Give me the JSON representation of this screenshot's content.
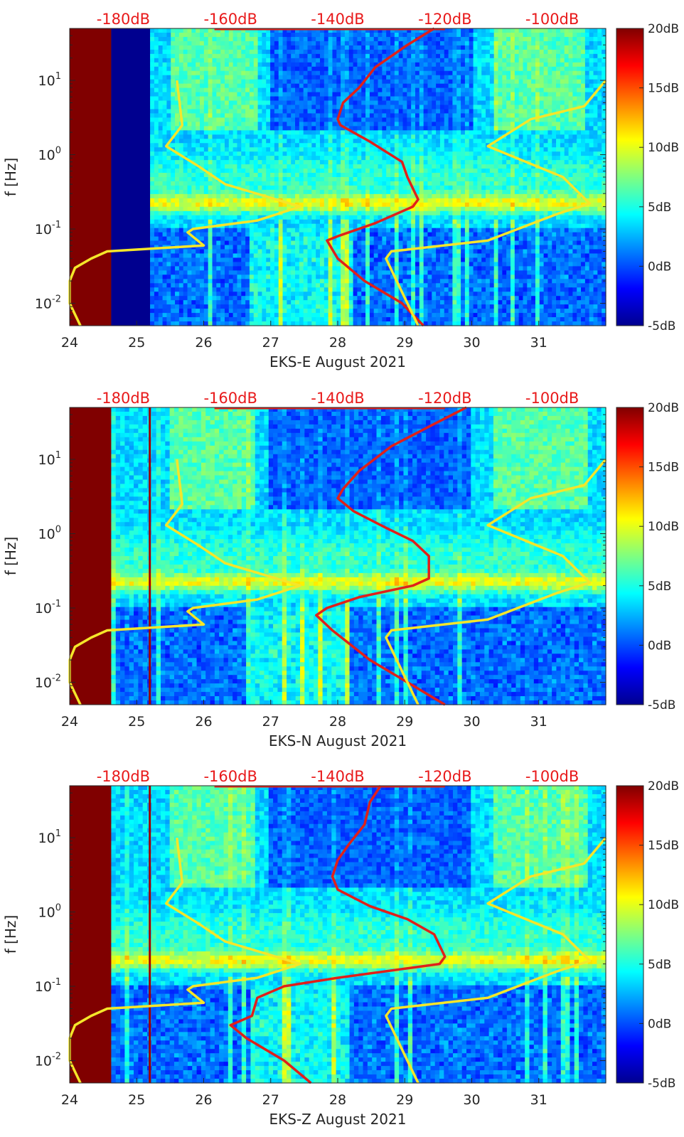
{
  "figure": {
    "colorbar": {
      "ticks": [
        "20dB",
        "15dB",
        "10dB",
        "5dB",
        "0dB",
        "-5dB"
      ],
      "range_db": [
        -5,
        20
      ],
      "colormap": "jet"
    },
    "top_axis_ticks": [
      "-180dB",
      "-160dB",
      "-140dB",
      "-120dB",
      "-100dB"
    ],
    "top_axis_color": "#e8191a",
    "curve_colors": {
      "red": "#e0201a",
      "yellow": "#f5e62a"
    },
    "panels": [
      {
        "xlabel": "EKS-E August 2021",
        "ylabel": "f [Hz]"
      },
      {
        "xlabel": "EKS-N August 2021",
        "ylabel": "f [Hz]"
      },
      {
        "xlabel": "EKS-Z August 2021",
        "ylabel": "f [Hz]"
      }
    ]
  },
  "chart_data": [
    {
      "type": "heatmap",
      "xlabel": "EKS-E August 2021",
      "ylabel": "f [Hz]",
      "xlim": [
        24,
        32
      ],
      "x_ticks": [
        "24",
        "25",
        "26",
        "27",
        "28",
        "29",
        "30",
        "31"
      ],
      "y_scale": "log",
      "ylim": [
        0.005,
        50
      ],
      "y_ticks": [
        "10^-2",
        "10^-1",
        "10^0",
        "10^1"
      ],
      "top_axis": {
        "label_ticks": [
          "-180dB",
          "-160dB",
          "-140dB",
          "-120dB",
          "-100dB"
        ],
        "db_range": [
          -190,
          -90
        ]
      },
      "colorbar_ticks": [
        "20dB",
        "15dB",
        "10dB",
        "5dB",
        "0dB",
        "-5dB"
      ],
      "overlay_curves": [
        {
          "color": "red",
          "points_db_hz": [
            [
              -122,
              50
            ],
            [
              -127,
              30
            ],
            [
              -133,
              15
            ],
            [
              -136,
              8
            ],
            [
              -139,
              5
            ],
            [
              -140,
              3
            ],
            [
              -139.5,
              2.5
            ],
            [
              -134,
              1.5
            ],
            [
              -128,
              0.8
            ],
            [
              -127,
              0.5
            ],
            [
              -125,
              0.25
            ],
            [
              -126,
              0.2
            ],
            [
              -133,
              0.12
            ],
            [
              -140,
              0.08
            ],
            [
              -142,
              0.07
            ],
            [
              -140,
              0.04
            ],
            [
              -135,
              0.02
            ],
            [
              -128,
              0.01
            ],
            [
              -124,
              0.005
            ]
          ]
        },
        {
          "color": "yellow",
          "points_db_hz": [
            [
              -170,
              10
            ],
            [
              -169,
              2.5
            ],
            [
              -172,
              1.3
            ],
            [
              -166,
              0.7
            ],
            [
              -161,
              0.4
            ],
            [
              -147,
              0.2
            ],
            [
              -155,
              0.13
            ],
            [
              -167,
              0.1
            ],
            [
              -168,
              0.09
            ],
            [
              -165,
              0.06
            ],
            [
              -183,
              0.05
            ],
            [
              -186,
              0.04
            ],
            [
              -189,
              0.03
            ],
            [
              -190,
              0.02
            ],
            [
              -190,
              0.01
            ],
            [
              -188,
              0.005
            ]
          ]
        },
        {
          "color": "yellow",
          "points_db_hz": [
            [
              -90,
              10
            ],
            [
              -94,
              4.5
            ],
            [
              -104,
              3
            ],
            [
              -112,
              1.3
            ],
            [
              -98,
              0.5
            ],
            [
              -93,
              0.22
            ],
            [
              -99,
              0.16
            ],
            [
              -112,
              0.07
            ],
            [
              -130,
              0.05
            ],
            [
              -131,
              0.04
            ],
            [
              -129,
              0.02
            ],
            [
              -125,
              0.005
            ]
          ]
        }
      ]
    },
    {
      "type": "heatmap",
      "xlabel": "EKS-N August 2021",
      "ylabel": "f [Hz]",
      "xlim": [
        24,
        32
      ],
      "x_ticks": [
        "24",
        "25",
        "26",
        "27",
        "28",
        "29",
        "30",
        "31"
      ],
      "y_scale": "log",
      "ylim": [
        0.005,
        50
      ],
      "y_ticks": [
        "10^-2",
        "10^-1",
        "10^0",
        "10^1"
      ],
      "top_axis": {
        "label_ticks": [
          "-180dB",
          "-160dB",
          "-140dB",
          "-120dB",
          "-100dB"
        ],
        "db_range": [
          -190,
          -90
        ]
      },
      "colorbar_ticks": [
        "20dB",
        "15dB",
        "10dB",
        "5dB",
        "0dB",
        "-5dB"
      ],
      "overlay_curves": [
        {
          "color": "red",
          "points_db_hz": [
            [
              -116,
              50
            ],
            [
              -122,
              30
            ],
            [
              -130,
              15
            ],
            [
              -136,
              7
            ],
            [
              -139,
              4
            ],
            [
              -140,
              3
            ],
            [
              -137,
              2
            ],
            [
              -131,
              1.2
            ],
            [
              -126,
              0.8
            ],
            [
              -123,
              0.5
            ],
            [
              -123,
              0.25
            ],
            [
              -126,
              0.2
            ],
            [
              -136,
              0.14
            ],
            [
              -142,
              0.1
            ],
            [
              -144,
              0.08
            ],
            [
              -141,
              0.05
            ],
            [
              -134,
              0.02
            ],
            [
              -127,
              0.01
            ],
            [
              -120,
              0.005
            ]
          ]
        },
        {
          "color": "yellow",
          "points_db_hz": [
            [
              -170,
              10
            ],
            [
              -169,
              2.5
            ],
            [
              -172,
              1.3
            ],
            [
              -166,
              0.7
            ],
            [
              -161,
              0.4
            ],
            [
              -147,
              0.2
            ],
            [
              -155,
              0.13
            ],
            [
              -167,
              0.1
            ],
            [
              -168,
              0.09
            ],
            [
              -165,
              0.06
            ],
            [
              -183,
              0.05
            ],
            [
              -186,
              0.04
            ],
            [
              -189,
              0.03
            ],
            [
              -190,
              0.02
            ],
            [
              -190,
              0.01
            ],
            [
              -188,
              0.005
            ]
          ]
        },
        {
          "color": "yellow",
          "points_db_hz": [
            [
              -90,
              10
            ],
            [
              -94,
              4.5
            ],
            [
              -104,
              3
            ],
            [
              -112,
              1.3
            ],
            [
              -98,
              0.5
            ],
            [
              -93,
              0.22
            ],
            [
              -99,
              0.16
            ],
            [
              -112,
              0.07
            ],
            [
              -130,
              0.05
            ],
            [
              -131,
              0.04
            ],
            [
              -129,
              0.02
            ],
            [
              -125,
              0.005
            ]
          ]
        }
      ]
    },
    {
      "type": "heatmap",
      "xlabel": "EKS-Z August 2021",
      "ylabel": "f [Hz]",
      "xlim": [
        24,
        32
      ],
      "x_ticks": [
        "24",
        "25",
        "26",
        "27",
        "28",
        "29",
        "30",
        "31"
      ],
      "y_scale": "log",
      "ylim": [
        0.005,
        50
      ],
      "y_ticks": [
        "10^-2",
        "10^-1",
        "10^0",
        "10^1"
      ],
      "top_axis": {
        "label_ticks": [
          "-180dB",
          "-160dB",
          "-140dB",
          "-120dB",
          "-100dB"
        ],
        "db_range": [
          -190,
          -90
        ]
      },
      "colorbar_ticks": [
        "20dB",
        "15dB",
        "10dB",
        "5dB",
        "0dB",
        "-5dB"
      ],
      "overlay_curves": [
        {
          "color": "red",
          "points_db_hz": [
            [
              -132,
              50
            ],
            [
              -134,
              30
            ],
            [
              -135,
              15
            ],
            [
              -138,
              8
            ],
            [
              -140,
              5
            ],
            [
              -141,
              3
            ],
            [
              -140,
              2
            ],
            [
              -134,
              1.2
            ],
            [
              -127,
              0.8
            ],
            [
              -122,
              0.5
            ],
            [
              -120,
              0.25
            ],
            [
              -121,
              0.2
            ],
            [
              -140,
              0.13
            ],
            [
              -150,
              0.1
            ],
            [
              -155,
              0.07
            ],
            [
              -156,
              0.04
            ],
            [
              -160,
              0.03
            ],
            [
              -157,
              0.02
            ],
            [
              -150,
              0.01
            ],
            [
              -145,
              0.005
            ]
          ]
        },
        {
          "color": "yellow",
          "points_db_hz": [
            [
              -170,
              10
            ],
            [
              -169,
              2.5
            ],
            [
              -172,
              1.3
            ],
            [
              -166,
              0.7
            ],
            [
              -161,
              0.4
            ],
            [
              -147,
              0.2
            ],
            [
              -155,
              0.13
            ],
            [
              -167,
              0.1
            ],
            [
              -168,
              0.09
            ],
            [
              -165,
              0.06
            ],
            [
              -183,
              0.05
            ],
            [
              -186,
              0.04
            ],
            [
              -189,
              0.03
            ],
            [
              -190,
              0.02
            ],
            [
              -190,
              0.01
            ],
            [
              -188,
              0.005
            ]
          ]
        },
        {
          "color": "yellow",
          "points_db_hz": [
            [
              -90,
              10
            ],
            [
              -94,
              4.5
            ],
            [
              -104,
              3
            ],
            [
              -112,
              1.3
            ],
            [
              -98,
              0.5
            ],
            [
              -93,
              0.22
            ],
            [
              -99,
              0.16
            ],
            [
              -112,
              0.07
            ],
            [
              -130,
              0.05
            ],
            [
              -131,
              0.04
            ],
            [
              -129,
              0.02
            ],
            [
              -125,
              0.005
            ]
          ]
        }
      ]
    }
  ]
}
